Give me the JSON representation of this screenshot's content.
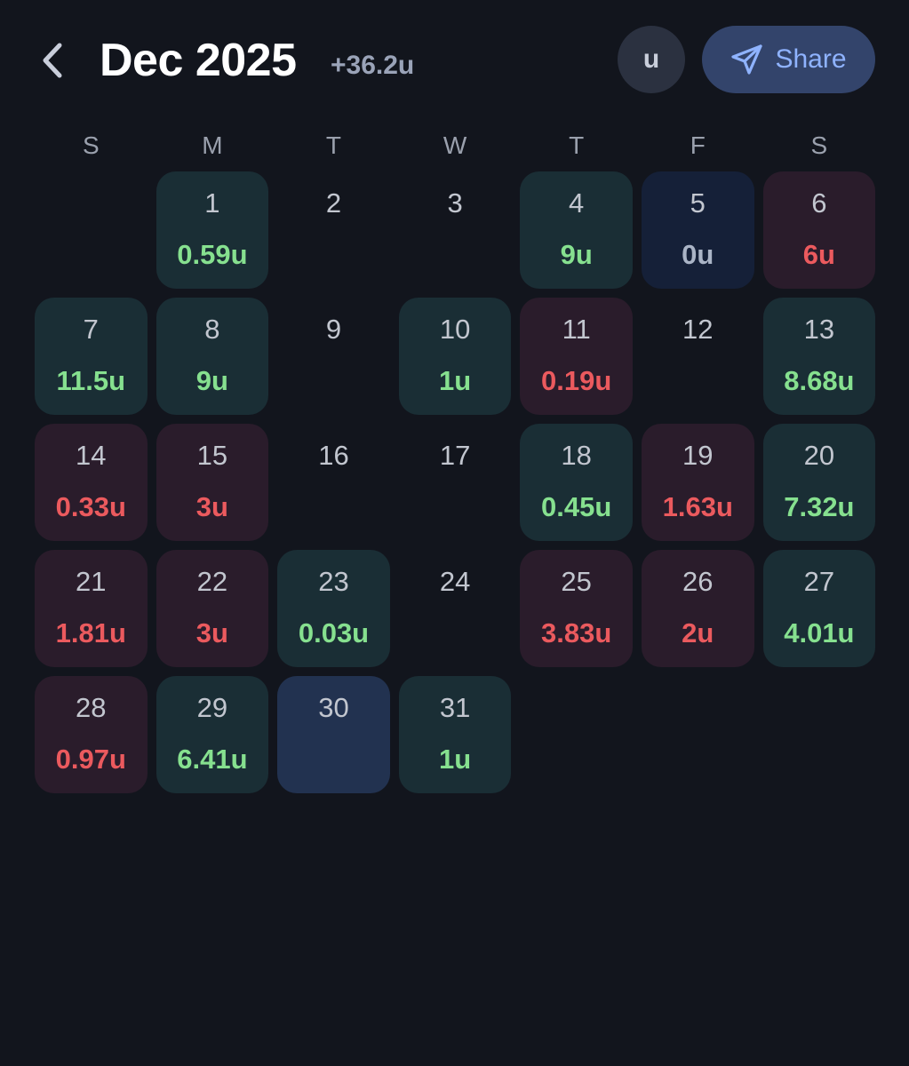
{
  "header": {
    "back_icon": "chevron-left-icon",
    "title": "Dec 2025",
    "total": "+36.2u",
    "unit_label": "u",
    "share_label": "Share",
    "share_icon": "send-icon"
  },
  "weekdays": [
    "S",
    "M",
    "T",
    "W",
    "T",
    "F",
    "S"
  ],
  "colors": {
    "background": "#12151d",
    "win_bg": "#1a2e35",
    "loss_bg": "#2a1c2b",
    "even_bg": "#152038",
    "today_bg": "#223250",
    "win_text": "#86e08f",
    "loss_text": "#eb5a5e",
    "accent": "#8fb3ff"
  },
  "calendar": {
    "first_weekday_index": 1,
    "days": [
      {
        "day": "1",
        "value": "0.59u",
        "status": "win"
      },
      {
        "day": "2",
        "value": "",
        "status": "none"
      },
      {
        "day": "3",
        "value": "",
        "status": "none"
      },
      {
        "day": "4",
        "value": "9u",
        "status": "win"
      },
      {
        "day": "5",
        "value": "0u",
        "status": "even"
      },
      {
        "day": "6",
        "value": "6u",
        "status": "loss"
      },
      {
        "day": "7",
        "value": "11.5u",
        "status": "win"
      },
      {
        "day": "8",
        "value": "9u",
        "status": "win"
      },
      {
        "day": "9",
        "value": "",
        "status": "none"
      },
      {
        "day": "10",
        "value": "1u",
        "status": "win"
      },
      {
        "day": "11",
        "value": "0.19u",
        "status": "loss"
      },
      {
        "day": "12",
        "value": "",
        "status": "none"
      },
      {
        "day": "13",
        "value": "8.68u",
        "status": "win"
      },
      {
        "day": "14",
        "value": "0.33u",
        "status": "loss"
      },
      {
        "day": "15",
        "value": "3u",
        "status": "loss"
      },
      {
        "day": "16",
        "value": "",
        "status": "none"
      },
      {
        "day": "17",
        "value": "",
        "status": "none"
      },
      {
        "day": "18",
        "value": "0.45u",
        "status": "win"
      },
      {
        "day": "19",
        "value": "1.63u",
        "status": "loss"
      },
      {
        "day": "20",
        "value": "7.32u",
        "status": "win"
      },
      {
        "day": "21",
        "value": "1.81u",
        "status": "loss"
      },
      {
        "day": "22",
        "value": "3u",
        "status": "loss"
      },
      {
        "day": "23",
        "value": "0.03u",
        "status": "win"
      },
      {
        "day": "24",
        "value": "",
        "status": "none"
      },
      {
        "day": "25",
        "value": "3.83u",
        "status": "loss"
      },
      {
        "day": "26",
        "value": "2u",
        "status": "loss"
      },
      {
        "day": "27",
        "value": "4.01u",
        "status": "win"
      },
      {
        "day": "28",
        "value": "0.97u",
        "status": "loss"
      },
      {
        "day": "29",
        "value": "6.41u",
        "status": "win"
      },
      {
        "day": "30",
        "value": "",
        "status": "today"
      },
      {
        "day": "31",
        "value": "1u",
        "status": "win"
      }
    ]
  }
}
